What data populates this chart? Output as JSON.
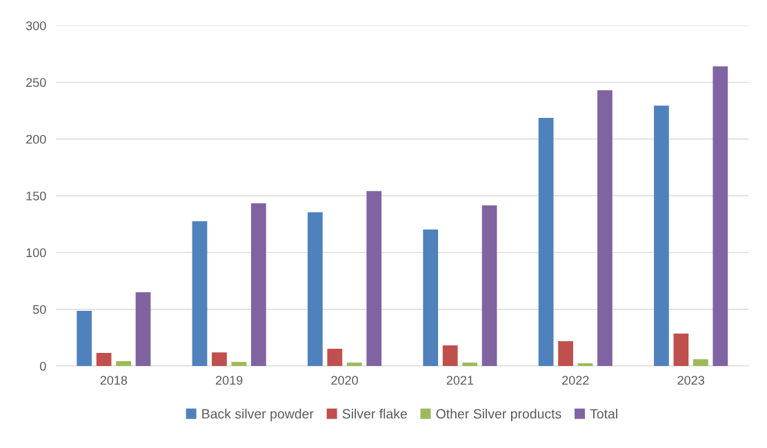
{
  "chart_data": {
    "type": "bar",
    "categories": [
      "2018",
      "2019",
      "2020",
      "2021",
      "2022",
      "2023"
    ],
    "series": [
      {
        "name": "Back silver powder",
        "color": "#4f81bd",
        "values": [
          48.6,
          127.5,
          135.4,
          120.2,
          218.6,
          229.5
        ]
      },
      {
        "name": "Silver flake",
        "color": "#c0504d",
        "values": [
          11.5,
          12,
          15.2,
          18.2,
          21.9,
          28.5
        ]
      },
      {
        "name": "Other Silver products",
        "color": "#9bbb59",
        "values": [
          4.3,
          3.6,
          3,
          3,
          2.4,
          6
        ]
      },
      {
        "name": "Total",
        "color": "#8064a2",
        "values": [
          65,
          143.3,
          154.2,
          141.5,
          243,
          264
        ]
      }
    ],
    "ylim": [
      0,
      300
    ],
    "yticks": [
      0,
      50,
      100,
      150,
      200,
      250,
      300
    ],
    "grid": "y",
    "legend": "bottom"
  }
}
